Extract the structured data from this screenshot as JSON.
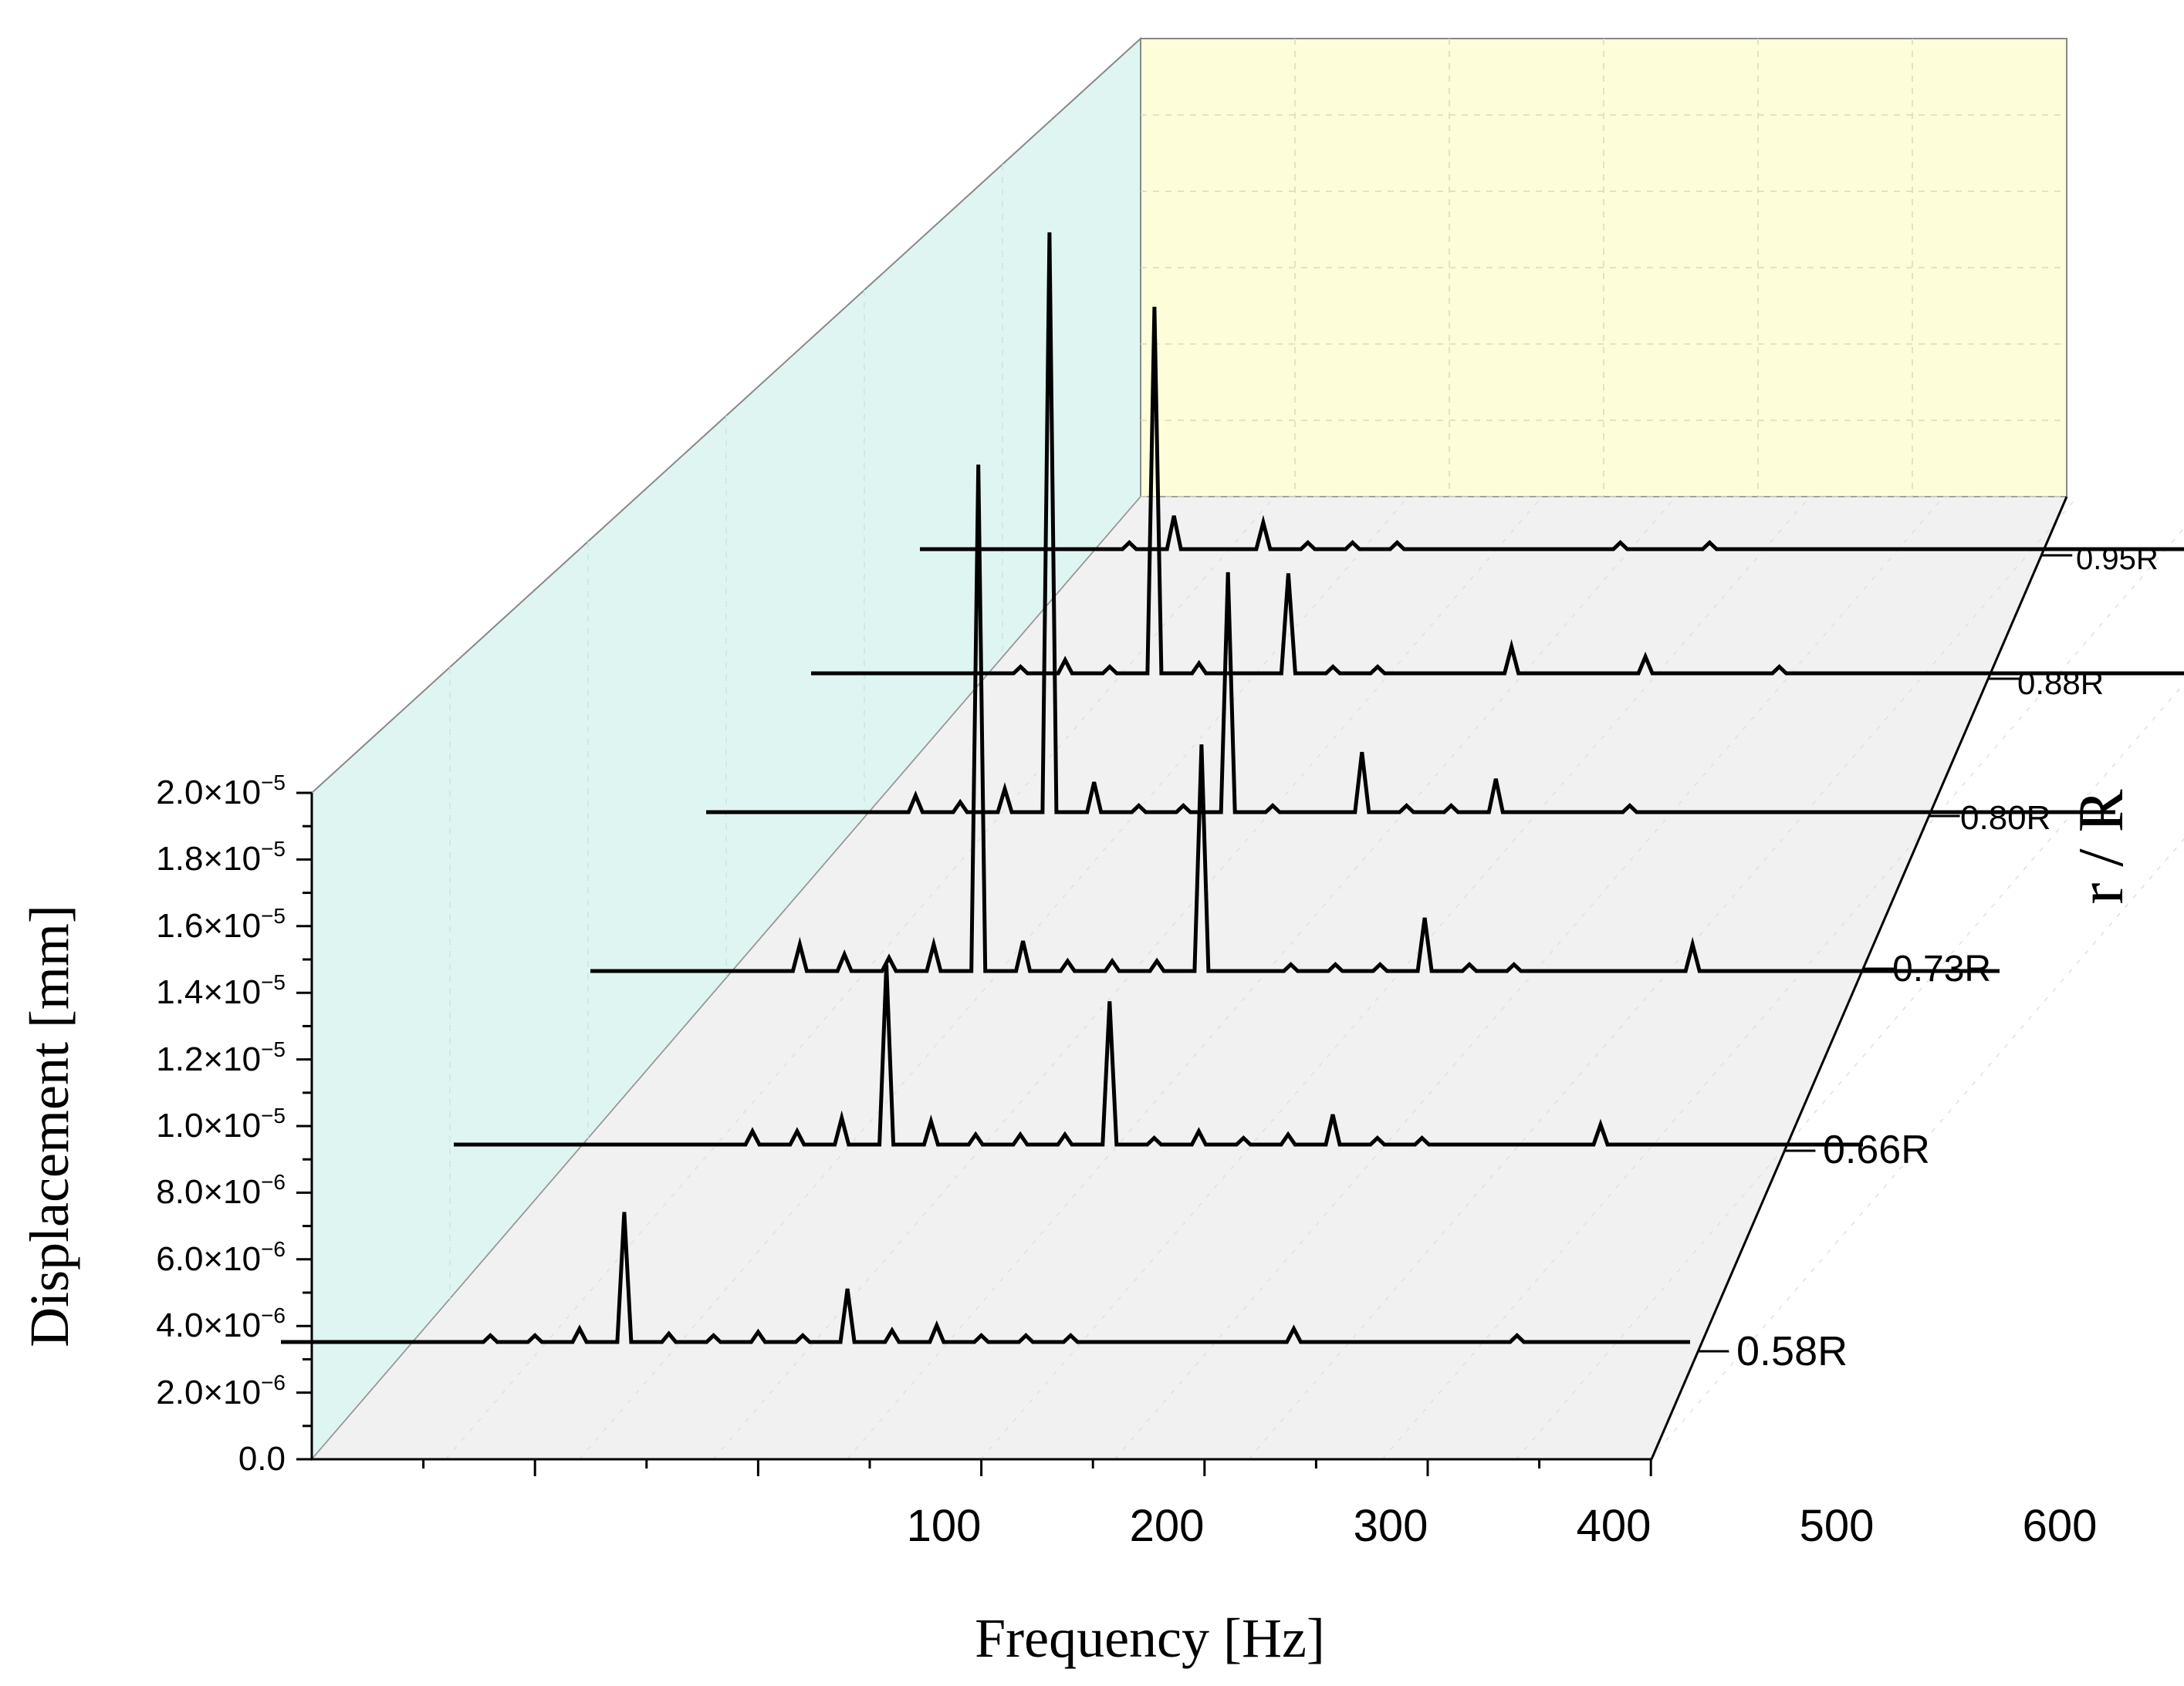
{
  "chart_data": {
    "type": "waterfall-3d-line",
    "xlabel": "Frequency [Hz]",
    "ylabel": "Displacement [mm]",
    "zlabel": "r / R",
    "xlim": [
      0,
      600
    ],
    "ylim": [
      0,
      2e-05
    ],
    "x_ticks": [
      "100",
      "200",
      "300",
      "400",
      "500",
      "600"
    ],
    "y_ticks": [
      {
        "mant": "0.0",
        "exp": ""
      },
      {
        "mant": "2.0×10",
        "exp": "−6"
      },
      {
        "mant": "4.0×10",
        "exp": "−6"
      },
      {
        "mant": "6.0×10",
        "exp": "−6"
      },
      {
        "mant": "8.0×10",
        "exp": "−6"
      },
      {
        "mant": "1.0×10",
        "exp": "−5"
      },
      {
        "mant": "1.2×10",
        "exp": "−5"
      },
      {
        "mant": "1.4×10",
        "exp": "−5"
      },
      {
        "mant": "1.6×10",
        "exp": "−5"
      },
      {
        "mant": "1.8×10",
        "exp": "−5"
      },
      {
        "mant": "2.0×10",
        "exp": "−5"
      }
    ],
    "series": [
      {
        "name": "0.58R",
        "peaks": [
          [
            80,
            2e-07
          ],
          [
            100,
            2e-07
          ],
          [
            120,
            4e-07
          ],
          [
            140,
            3.9e-06
          ],
          [
            160,
            2.5e-07
          ],
          [
            180,
            2e-07
          ],
          [
            200,
            3e-07
          ],
          [
            220,
            2e-07
          ],
          [
            240,
            1.6e-06
          ],
          [
            260,
            3.5e-07
          ],
          [
            280,
            5e-07
          ],
          [
            300,
            2e-07
          ],
          [
            320,
            2e-07
          ],
          [
            340,
            2e-07
          ],
          [
            440,
            4e-07
          ],
          [
            540,
            2e-07
          ]
        ]
      },
      {
        "name": "0.66R",
        "peaks": [
          [
            120,
            4e-07
          ],
          [
            140,
            4e-07
          ],
          [
            160,
            8e-07
          ],
          [
            180,
            5.4e-06
          ],
          [
            200,
            7e-07
          ],
          [
            220,
            3e-07
          ],
          [
            240,
            3e-07
          ],
          [
            260,
            3e-07
          ],
          [
            280,
            4.3e-06
          ],
          [
            300,
            2e-07
          ],
          [
            320,
            4e-07
          ],
          [
            340,
            2e-07
          ],
          [
            360,
            3e-07
          ],
          [
            380,
            9e-07
          ],
          [
            400,
            2e-07
          ],
          [
            420,
            2e-07
          ],
          [
            500,
            6e-07
          ]
        ]
      },
      {
        "name": "0.73R",
        "peaks": [
          [
            80,
            8e-07
          ],
          [
            100,
            5e-07
          ],
          [
            120,
            4e-07
          ],
          [
            140,
            8e-07
          ],
          [
            160,
            1.52e-05
          ],
          [
            180,
            9e-07
          ],
          [
            200,
            3e-07
          ],
          [
            220,
            3e-07
          ],
          [
            240,
            3e-07
          ],
          [
            260,
            6.8e-06
          ],
          [
            300,
            2e-07
          ],
          [
            320,
            2e-07
          ],
          [
            340,
            2e-07
          ],
          [
            360,
            1.6e-06
          ],
          [
            380,
            2e-07
          ],
          [
            400,
            2e-07
          ],
          [
            480,
            8e-07
          ]
        ]
      },
      {
        "name": "0.80R",
        "peaks": [
          [
            80,
            5e-07
          ],
          [
            100,
            3e-07
          ],
          [
            120,
            7e-07
          ],
          [
            140,
            1.74e-05
          ],
          [
            160,
            9e-07
          ],
          [
            180,
            2e-07
          ],
          [
            200,
            2e-07
          ],
          [
            220,
            7.2e-06
          ],
          [
            240,
            2e-07
          ],
          [
            280,
            1.8e-06
          ],
          [
            300,
            2e-07
          ],
          [
            320,
            2e-07
          ],
          [
            340,
            1e-06
          ],
          [
            400,
            2e-07
          ]
        ]
      },
      {
        "name": "0.88R",
        "peaks": [
          [
            80,
            2e-07
          ],
          [
            100,
            4e-07
          ],
          [
            120,
            2e-07
          ],
          [
            140,
            1.1e-05
          ],
          [
            160,
            3e-07
          ],
          [
            200,
            3e-06
          ],
          [
            220,
            2e-07
          ],
          [
            240,
            2e-07
          ],
          [
            300,
            8e-07
          ],
          [
            360,
            5e-07
          ],
          [
            420,
            2e-07
          ]
        ]
      },
      {
        "name": "0.95R",
        "peaks": [
          [
            80,
            2e-07
          ],
          [
            100,
            1e-06
          ],
          [
            140,
            8e-07
          ],
          [
            160,
            2e-07
          ],
          [
            180,
            2e-07
          ],
          [
            200,
            2e-07
          ],
          [
            300,
            2e-07
          ],
          [
            340,
            2e-07
          ]
        ]
      }
    ]
  }
}
